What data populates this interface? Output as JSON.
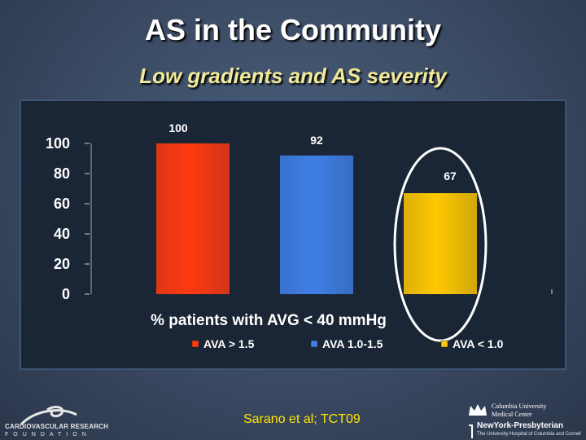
{
  "slide": {
    "title": "AS in the Community",
    "subtitle": "Low gradients and AS severity",
    "source": "Sarano et al; TCT09"
  },
  "logos": {
    "left": {
      "line1": "CARDIOVASCULAR RESEARCH",
      "line2": "FOUNDATION",
      "icon": "crf-swirl-icon"
    },
    "right": {
      "line1": "Columbia University",
      "line2": "Medical Center",
      "line3": "NewYork-Presbyterian",
      "line4": "The University Hospital of Columbia and Cornell",
      "icon": "crown-icon"
    }
  },
  "colors": {
    "background": "#3a4a63",
    "title": "#ffffff",
    "subtitle": "#f2ea9a",
    "source": "#ffe400",
    "ellipse": "#ffffff"
  },
  "chart_data": {
    "type": "bar",
    "title": "",
    "xlabel": "% patients with AVG < 40 mmHg",
    "ylabel": "",
    "ylim": [
      0,
      100
    ],
    "yticks": [
      0,
      20,
      40,
      60,
      80,
      100
    ],
    "grid": false,
    "legend_position": "bottom",
    "series": [
      {
        "name": "AVA > 1.5",
        "value": 100,
        "color": "#ff3a10"
      },
      {
        "name": "AVA 1.0-1.5",
        "value": 92,
        "color": "#3f7fe6"
      },
      {
        "name": "AVA < 1.0",
        "value": 67,
        "color": "#ffc800"
      }
    ],
    "annotations": [
      {
        "type": "ellipse",
        "target": "AVA < 1.0"
      }
    ]
  }
}
